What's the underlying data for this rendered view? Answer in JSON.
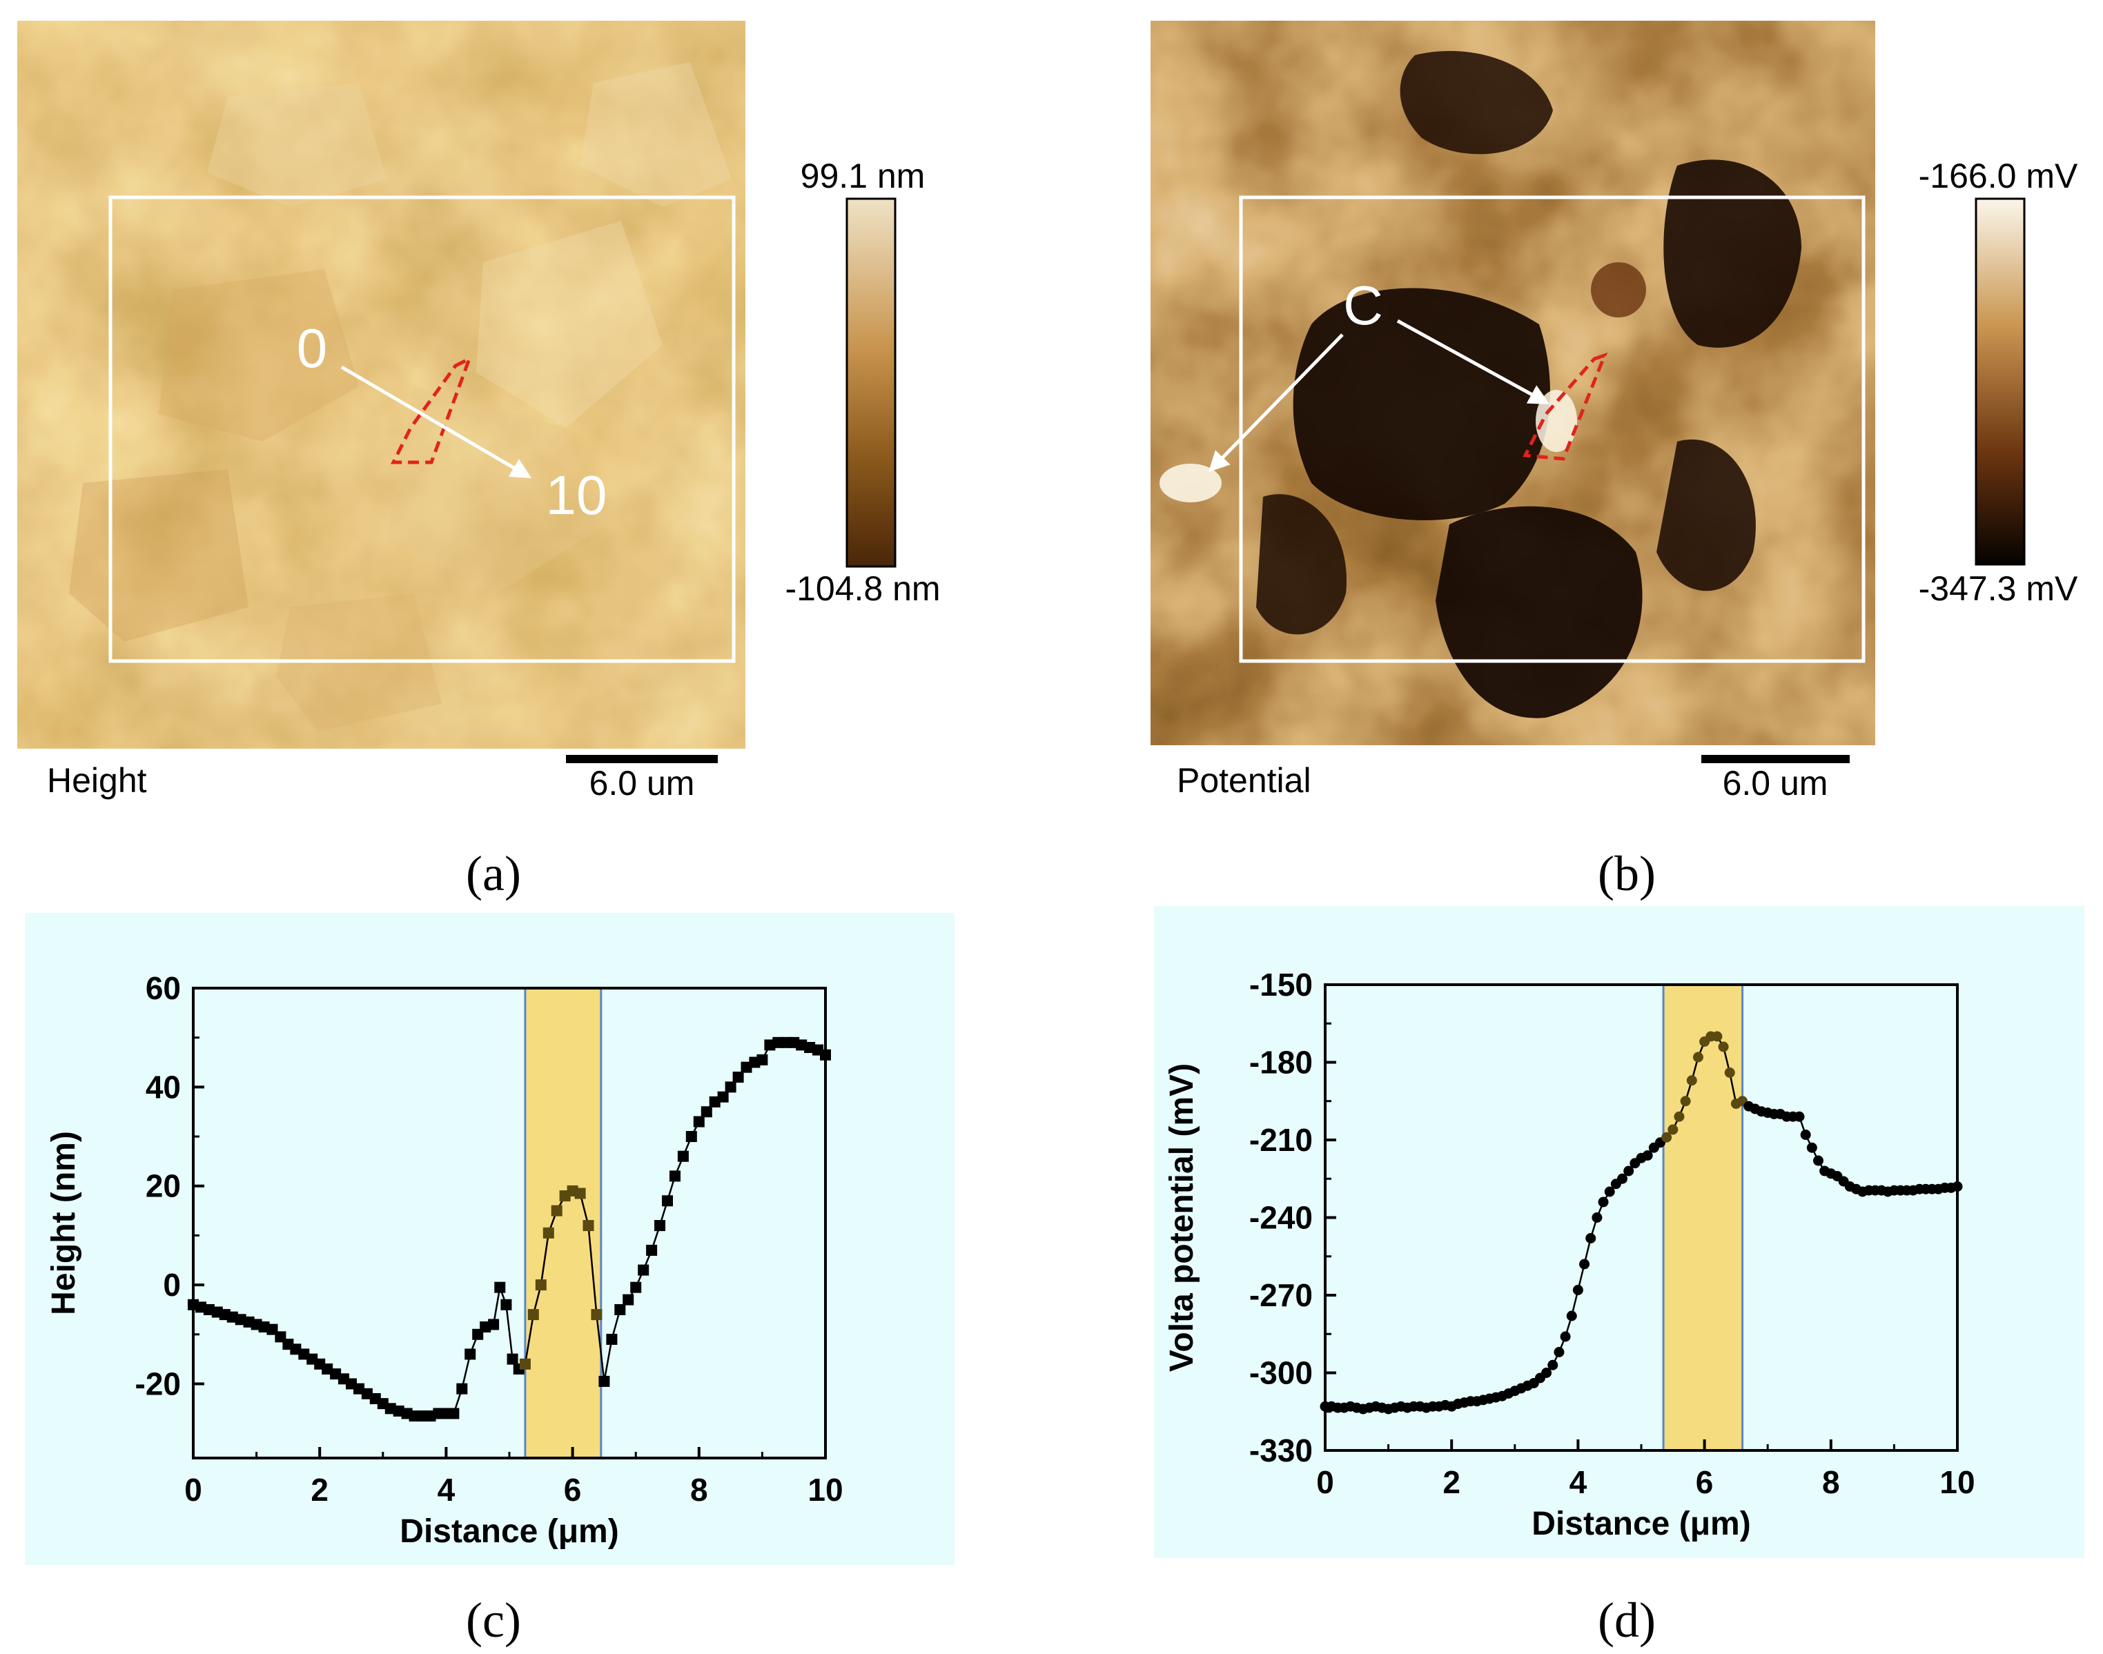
{
  "panels": {
    "a": {
      "caption": "(a)",
      "image_label": "Height",
      "scale_bar": "6.0 um",
      "colorbar": {
        "max": "99.1 nm",
        "min": "-104.8 nm",
        "colors": [
          "#efe2c4",
          "#c99550",
          "#8c5a1c",
          "#4a2608"
        ]
      },
      "profile_start": "0",
      "profile_end": "10"
    },
    "b": {
      "caption": "(b)",
      "image_label": "Potential",
      "scale_bar": "6.0 um",
      "colorbar": {
        "max": "-166.0 mV",
        "min": "-347.3 mV",
        "colors": [
          "#fbf6ea",
          "#c99550",
          "#6a3410",
          "#050200"
        ]
      },
      "marker": "C"
    },
    "c": {
      "caption": "(c)"
    },
    "d": {
      "caption": "(d)"
    }
  },
  "colors": {
    "plot_background": "#e6fcfd",
    "highlight_band": "#f5dc7f",
    "highlight_border": "#5b86c8",
    "series": "#000000",
    "roi_outline": "#e0241c"
  },
  "chart_data": [
    {
      "id": "c",
      "type": "line",
      "xlabel": "Distance (μm)",
      "ylabel": "Height (nm)",
      "xlim": [
        0,
        10
      ],
      "ylim": [
        -35,
        60
      ],
      "xticks": [
        0,
        2,
        4,
        6,
        8,
        10
      ],
      "yticks": [
        -20,
        0,
        20,
        40,
        60
      ],
      "xtick_labels": [
        "0",
        "2",
        "4",
        "6",
        "8",
        "10"
      ],
      "ytick_labels": [
        "-20",
        "0",
        "20",
        "40",
        "60"
      ],
      "marker": "square",
      "highlight_range": [
        5.25,
        6.45
      ],
      "series": [
        {
          "name": "Height",
          "x": [
            0,
            0.12,
            0.25,
            0.38,
            0.5,
            0.62,
            0.75,
            0.88,
            1.0,
            1.12,
            1.25,
            1.38,
            1.5,
            1.62,
            1.75,
            1.88,
            2.0,
            2.12,
            2.25,
            2.38,
            2.5,
            2.62,
            2.75,
            2.88,
            3.0,
            3.12,
            3.25,
            3.38,
            3.5,
            3.62,
            3.75,
            3.88,
            4.0,
            4.12,
            4.25,
            4.38,
            4.5,
            4.62,
            4.75,
            4.85,
            4.95,
            5.05,
            5.15,
            5.25,
            5.38,
            5.5,
            5.62,
            5.75,
            5.88,
            6.0,
            6.12,
            6.25,
            6.38,
            6.5,
            6.62,
            6.75,
            6.88,
            7.0,
            7.12,
            7.25,
            7.38,
            7.5,
            7.62,
            7.75,
            7.88,
            8.0,
            8.12,
            8.25,
            8.38,
            8.5,
            8.62,
            8.75,
            8.88,
            9.0,
            9.12,
            9.25,
            9.38,
            9.5,
            9.62,
            9.75,
            9.88,
            10.0
          ],
          "values": [
            -4,
            -4.5,
            -5,
            -5.5,
            -6,
            -6.5,
            -7,
            -7.5,
            -8,
            -8.5,
            -9,
            -10.5,
            -12,
            -13,
            -14,
            -15,
            -16,
            -17,
            -18,
            -19,
            -20,
            -21,
            -22,
            -23,
            -24,
            -25,
            -25.5,
            -26,
            -26.5,
            -26.5,
            -26.5,
            -26,
            -26,
            -26,
            -21,
            -14,
            -10,
            -8.5,
            -8,
            -0.5,
            -4,
            -15,
            -17,
            -16,
            -6,
            0,
            10.5,
            15,
            18,
            19,
            18.5,
            12,
            -6,
            -19.5,
            -11,
            -5,
            -3,
            -0.5,
            3,
            7,
            12,
            17,
            22,
            26,
            30,
            33,
            35,
            37,
            38,
            40,
            42,
            44,
            45,
            45.5,
            48.5,
            49,
            49,
            49,
            48.5,
            48,
            47.5,
            46.5
          ]
        }
      ]
    },
    {
      "id": "d",
      "type": "line",
      "xlabel": "Distance (μm)",
      "ylabel": "Volta potential (mV)",
      "xlim": [
        0,
        10
      ],
      "ylim": [
        -330,
        -150
      ],
      "xticks": [
        0,
        2,
        4,
        6,
        8,
        10
      ],
      "yticks": [
        -330,
        -300,
        -270,
        -240,
        -210,
        -180,
        -150
      ],
      "xtick_labels": [
        "0",
        "2",
        "4",
        "6",
        "8",
        "10"
      ],
      "ytick_labels": [
        "-330",
        "-300",
        "-270",
        "-240",
        "-210",
        "-180",
        "-150"
      ],
      "marker": "circle",
      "highlight_range": [
        5.35,
        6.6
      ],
      "series": [
        {
          "name": "Volta potential",
          "x": [
            0,
            0.1,
            0.2,
            0.3,
            0.4,
            0.5,
            0.6,
            0.7,
            0.8,
            0.9,
            1.0,
            1.1,
            1.2,
            1.3,
            1.4,
            1.5,
            1.6,
            1.7,
            1.8,
            1.9,
            2.0,
            2.1,
            2.2,
            2.3,
            2.4,
            2.5,
            2.6,
            2.7,
            2.8,
            2.9,
            3.0,
            3.1,
            3.2,
            3.3,
            3.4,
            3.5,
            3.6,
            3.7,
            3.8,
            3.9,
            4.0,
            4.1,
            4.2,
            4.3,
            4.4,
            4.5,
            4.6,
            4.7,
            4.8,
            4.9,
            5.0,
            5.1,
            5.2,
            5.3,
            5.4,
            5.5,
            5.6,
            5.7,
            5.8,
            5.9,
            6.0,
            6.1,
            6.2,
            6.3,
            6.4,
            6.5,
            6.6,
            6.7,
            6.8,
            6.9,
            7.0,
            7.1,
            7.2,
            7.3,
            7.4,
            7.5,
            7.6,
            7.7,
            7.8,
            7.9,
            8.0,
            8.1,
            8.2,
            8.3,
            8.4,
            8.5,
            8.6,
            8.7,
            8.8,
            8.9,
            9.0,
            9.1,
            9.2,
            9.3,
            9.4,
            9.5,
            9.6,
            9.7,
            9.8,
            9.9,
            10.0
          ],
          "values": [
            -313,
            -313,
            -313.5,
            -313.5,
            -313,
            -313.5,
            -314,
            -313.5,
            -313,
            -313.5,
            -314,
            -313.5,
            -313,
            -313.5,
            -313,
            -313,
            -313.5,
            -313,
            -313,
            -312.5,
            -313,
            -312,
            -311.5,
            -311,
            -311,
            -310.5,
            -310,
            -309.5,
            -309,
            -308,
            -307,
            -306,
            -305,
            -304,
            -302,
            -300,
            -297,
            -292,
            -286,
            -278,
            -268,
            -258,
            -248,
            -240,
            -234,
            -230,
            -227,
            -225,
            -222,
            -219,
            -217,
            -216,
            -213,
            -211,
            -209,
            -206,
            -201,
            -195,
            -187,
            -178,
            -172,
            -170,
            -170,
            -174,
            -184,
            -196,
            -195,
            -197,
            -198,
            -199,
            -199.5,
            -200,
            -200,
            -201,
            -201,
            -201,
            -208,
            -213,
            -218,
            -222,
            -223,
            -224,
            -226,
            -228,
            -229,
            -230,
            -229.5,
            -229.5,
            -229.5,
            -230,
            -229.5,
            -229.5,
            -229.5,
            -229.5,
            -229,
            -229,
            -229,
            -229,
            -228.5,
            -228.5,
            -228
          ]
        }
      ]
    }
  ]
}
